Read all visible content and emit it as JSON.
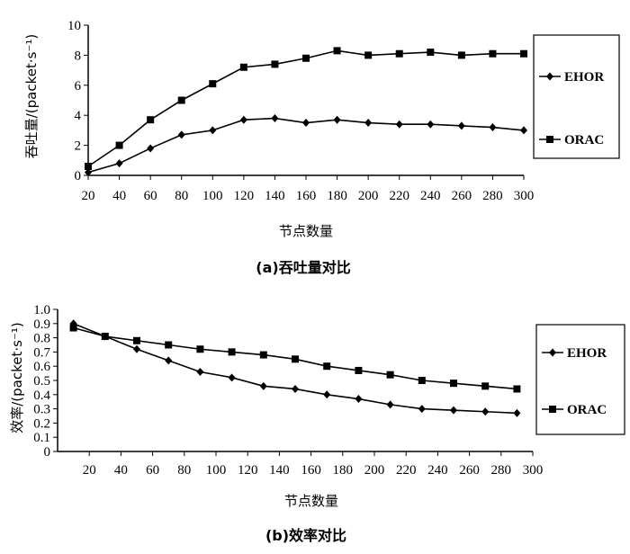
{
  "chart_data": [
    {
      "type": "line",
      "caption": "(a)吞吐量对比",
      "xlabel": "节点数量",
      "ylabel": "吞吐量/(packet·s⁻¹)",
      "categories": [
        "20",
        "40",
        "60",
        "80",
        "100",
        "120",
        "140",
        "160",
        "180",
        "200",
        "220",
        "240",
        "260",
        "280",
        "300"
      ],
      "x_ticks": [
        "20",
        "40",
        "60",
        "80",
        "100",
        "120",
        "140",
        "160",
        "180",
        "200",
        "220",
        "240",
        "260",
        "280",
        "300"
      ],
      "y_ticks": [
        "0",
        "2",
        "4",
        "6",
        "8",
        "10"
      ],
      "ylim": [
        0,
        10
      ],
      "grid": false,
      "legend_position": "right",
      "series": [
        {
          "name": "EHOR",
          "marker": "diamond",
          "values": [
            0.2,
            0.8,
            1.8,
            2.7,
            3.0,
            3.7,
            3.8,
            3.5,
            3.7,
            3.5,
            3.4,
            3.4,
            3.3,
            3.2,
            3.0
          ]
        },
        {
          "name": "ORAC",
          "marker": "square",
          "values": [
            0.6,
            2.0,
            3.7,
            5.0,
            6.1,
            7.2,
            7.4,
            7.8,
            8.3,
            8.0,
            8.1,
            8.2,
            8.0,
            8.1,
            8.1
          ]
        }
      ]
    },
    {
      "type": "line",
      "caption": "(b)效率对比",
      "xlabel": "节点数量",
      "ylabel": "效率/(packet·s⁻¹)",
      "x": [
        10,
        30,
        50,
        70,
        90,
        110,
        130,
        150,
        170,
        190,
        210,
        230,
        250,
        270,
        290
      ],
      "x_ticks": [
        "20",
        "40",
        "60",
        "80",
        "100",
        "120",
        "140",
        "160",
        "180",
        "200",
        "220",
        "240",
        "260",
        "280",
        "300"
      ],
      "xlim": [
        0,
        300
      ],
      "y_ticks": [
        "0",
        "0.1",
        "0.2",
        "0.3",
        "0.4",
        "0.5",
        "0.6",
        "0.7",
        "0.8",
        "0.9",
        "1.0"
      ],
      "ylim": [
        0,
        1.0
      ],
      "grid": false,
      "legend_position": "right",
      "series": [
        {
          "name": "EHOR",
          "marker": "diamond",
          "values": [
            0.9,
            0.81,
            0.72,
            0.64,
            0.56,
            0.52,
            0.46,
            0.44,
            0.4,
            0.37,
            0.33,
            0.3,
            0.29,
            0.28,
            0.27
          ]
        },
        {
          "name": "ORAC",
          "marker": "square",
          "values": [
            0.87,
            0.81,
            0.78,
            0.75,
            0.72,
            0.7,
            0.68,
            0.65,
            0.6,
            0.57,
            0.54,
            0.5,
            0.48,
            0.46,
            0.44
          ]
        }
      ]
    }
  ]
}
